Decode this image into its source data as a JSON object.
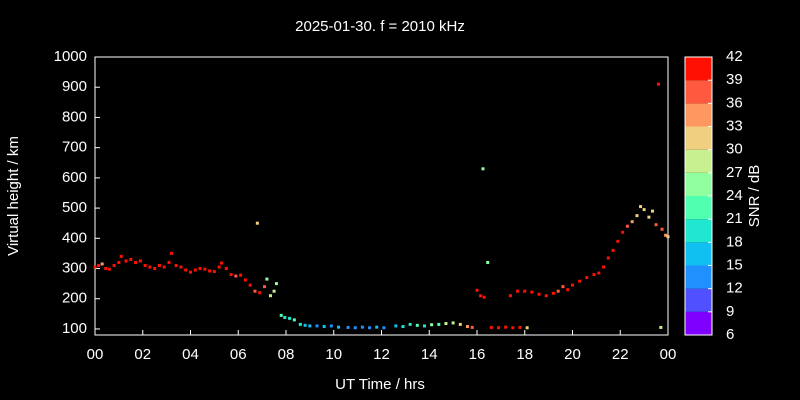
{
  "chart_data": {
    "type": "scatter",
    "title": "2025-01-30. f = 2010 kHz",
    "xlabel": "UT Time / hrs",
    "ylabel": "Virtual height / km",
    "x": [
      0.0,
      0.15,
      0.3,
      0.45,
      0.6,
      0.8,
      1.0,
      1.1,
      1.3,
      1.5,
      1.7,
      1.9,
      2.1,
      2.3,
      2.5,
      2.7,
      2.9,
      3.1,
      3.2,
      3.4,
      3.6,
      3.8,
      4.0,
      4.2,
      4.4,
      4.6,
      4.8,
      5.0,
      5.2,
      5.3,
      5.5,
      5.7,
      5.9,
      6.1,
      6.3,
      6.5,
      6.7,
      6.8,
      6.9,
      7.1,
      7.2,
      7.35,
      7.5,
      7.6,
      7.8,
      7.95,
      8.15,
      8.35,
      8.6,
      8.8,
      9.0,
      9.3,
      9.6,
      9.9,
      10.2,
      10.6,
      10.9,
      11.2,
      11.5,
      11.8,
      12.1,
      12.6,
      12.9,
      13.2,
      13.5,
      13.8,
      14.1,
      14.4,
      14.7,
      15.0,
      15.3,
      15.6,
      15.8,
      16.0,
      16.15,
      16.3,
      16.25,
      16.45,
      16.6,
      16.9,
      17.2,
      17.5,
      17.8,
      18.1,
      17.4,
      17.7,
      18.0,
      18.3,
      18.6,
      18.9,
      19.2,
      19.4,
      19.6,
      19.8,
      20.0,
      20.3,
      20.6,
      20.9,
      21.1,
      21.3,
      21.5,
      21.7,
      21.9,
      22.1,
      22.3,
      22.5,
      22.7,
      22.85,
      23.0,
      23.2,
      23.35,
      23.5,
      23.6,
      23.7,
      23.75,
      23.9,
      24.0
    ],
    "values": [
      305,
      310,
      315,
      300,
      298,
      310,
      320,
      340,
      325,
      330,
      320,
      325,
      310,
      305,
      300,
      310,
      305,
      320,
      350,
      310,
      305,
      295,
      288,
      295,
      300,
      298,
      292,
      290,
      305,
      318,
      300,
      280,
      275,
      278,
      262,
      245,
      225,
      450,
      220,
      240,
      265,
      210,
      225,
      250,
      145,
      138,
      135,
      130,
      115,
      112,
      110,
      110,
      108,
      110,
      106,
      105,
      104,
      106,
      104,
      106,
      104,
      110,
      108,
      115,
      112,
      110,
      114,
      115,
      118,
      120,
      115,
      108,
      105,
      228,
      210,
      205,
      630,
      320,
      105,
      104,
      106,
      104,
      105,
      104,
      210,
      225,
      225,
      222,
      215,
      210,
      218,
      225,
      240,
      230,
      245,
      258,
      270,
      280,
      285,
      305,
      335,
      360,
      390,
      420,
      440,
      455,
      475,
      505,
      495,
      470,
      490,
      445,
      910,
      105,
      430,
      410,
      405
    ],
    "snr": [
      39,
      39,
      33,
      39,
      39,
      39,
      39,
      39,
      39,
      39,
      39,
      39,
      39,
      39,
      39,
      39,
      39,
      39,
      39,
      39,
      39,
      39,
      39,
      39,
      39,
      39,
      39,
      39,
      39,
      39,
      39,
      39,
      36,
      39,
      39,
      39,
      36,
      30,
      39,
      36,
      24,
      27,
      27,
      24,
      21,
      18,
      18,
      21,
      18,
      15,
      15,
      12,
      15,
      12,
      15,
      12,
      12,
      12,
      12,
      15,
      12,
      15,
      18,
      18,
      21,
      18,
      24,
      21,
      27,
      27,
      30,
      33,
      36,
      39,
      39,
      39,
      24,
      24,
      39,
      39,
      39,
      39,
      39,
      30,
      39,
      39,
      39,
      39,
      39,
      39,
      39,
      36,
      36,
      39,
      39,
      39,
      39,
      39,
      39,
      39,
      39,
      39,
      39,
      39,
      36,
      33,
      30,
      30,
      30,
      30,
      30,
      36,
      39,
      27,
      36,
      33,
      30
    ],
    "xlim": [
      0,
      24
    ],
    "xticks": [
      {
        "value": 0,
        "label": "00"
      },
      {
        "value": 2,
        "label": "02"
      },
      {
        "value": 4,
        "label": "04"
      },
      {
        "value": 6,
        "label": "06"
      },
      {
        "value": 8,
        "label": "08"
      },
      10,
      12,
      14,
      16,
      18,
      20,
      22,
      {
        "value": 24,
        "label": "00"
      }
    ],
    "ylim": [
      80,
      1000
    ],
    "yticks": [
      100,
      200,
      300,
      400,
      500,
      600,
      700,
      800,
      900,
      1000
    ],
    "colorbar": {
      "label": "SNR / dB",
      "lim": [
        6,
        42
      ],
      "ticks": [
        6,
        9,
        12,
        15,
        18,
        21,
        24,
        27,
        30,
        33,
        36,
        39,
        42
      ],
      "colors": [
        "#8000ff",
        "#5050ff",
        "#2090ff",
        "#10c0f0",
        "#20e8d0",
        "#50ffb0",
        "#90ffa0",
        "#c8f090",
        "#f0d080",
        "#ff9860",
        "#ff5a40",
        "#ff1000"
      ]
    }
  }
}
